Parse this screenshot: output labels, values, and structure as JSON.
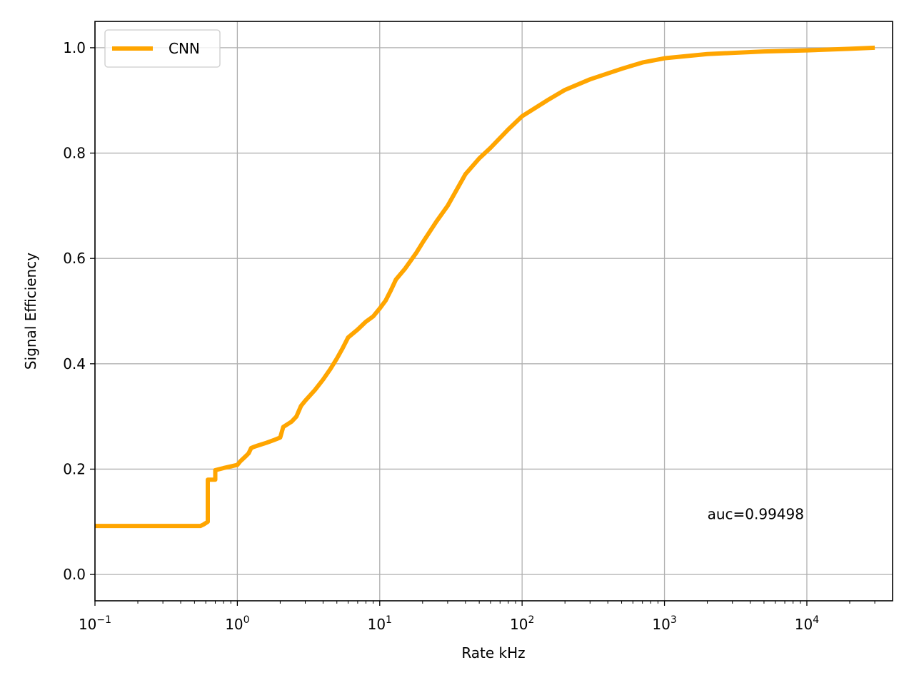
{
  "chart_data": {
    "type": "line",
    "xlabel": "Rate kHz",
    "ylabel": "Signal Efficiency",
    "xscale": "log",
    "xlim": [
      0.1,
      40000
    ],
    "ylim": [
      -0.05,
      1.05
    ],
    "grid": true,
    "legend_position": "top-left",
    "x_ticks": [
      {
        "value": 0.1,
        "base": "10",
        "exp": "−1"
      },
      {
        "value": 1,
        "base": "10",
        "exp": "0"
      },
      {
        "value": 10,
        "base": "10",
        "exp": "1"
      },
      {
        "value": 100,
        "base": "10",
        "exp": "2"
      },
      {
        "value": 1000,
        "base": "10",
        "exp": "3"
      },
      {
        "value": 10000,
        "base": "10",
        "exp": "4"
      }
    ],
    "y_ticks": [
      {
        "value": 0.0,
        "label": "0.0"
      },
      {
        "value": 0.2,
        "label": "0.2"
      },
      {
        "value": 0.4,
        "label": "0.4"
      },
      {
        "value": 0.6,
        "label": "0.6"
      },
      {
        "value": 0.8,
        "label": "0.8"
      },
      {
        "value": 1.0,
        "label": "1.0"
      }
    ],
    "series": [
      {
        "name": "CNN",
        "color": "#ffa500",
        "x": [
          0.1,
          0.55,
          0.58,
          0.62,
          0.62,
          0.7,
          0.7,
          0.8,
          1.0,
          1.05,
          1.15,
          1.2,
          1.25,
          1.3,
          1.4,
          1.6,
          1.8,
          2.0,
          2.1,
          2.4,
          2.6,
          2.8,
          3.0,
          3.5,
          4.0,
          4.5,
          5.0,
          5.5,
          6.0,
          7.0,
          8.0,
          9.0,
          10,
          11,
          12,
          13,
          15,
          18,
          20,
          25,
          30,
          40,
          50,
          60,
          80,
          100,
          150,
          200,
          300,
          500,
          700,
          1000,
          2000,
          5000,
          10000,
          20000,
          30000
        ],
        "y": [
          0.092,
          0.092,
          0.095,
          0.1,
          0.18,
          0.18,
          0.198,
          0.202,
          0.208,
          0.215,
          0.225,
          0.23,
          0.24,
          0.242,
          0.245,
          0.25,
          0.255,
          0.26,
          0.28,
          0.29,
          0.3,
          0.32,
          0.33,
          0.35,
          0.37,
          0.39,
          0.41,
          0.43,
          0.45,
          0.465,
          0.48,
          0.49,
          0.505,
          0.52,
          0.54,
          0.56,
          0.58,
          0.61,
          0.63,
          0.67,
          0.7,
          0.76,
          0.79,
          0.81,
          0.845,
          0.87,
          0.9,
          0.92,
          0.94,
          0.96,
          0.972,
          0.98,
          0.988,
          0.993,
          0.995,
          0.998,
          1.0
        ]
      }
    ],
    "annotations": [
      {
        "text": "auc=0.99498",
        "x": 2000,
        "y": 0.105
      }
    ]
  }
}
